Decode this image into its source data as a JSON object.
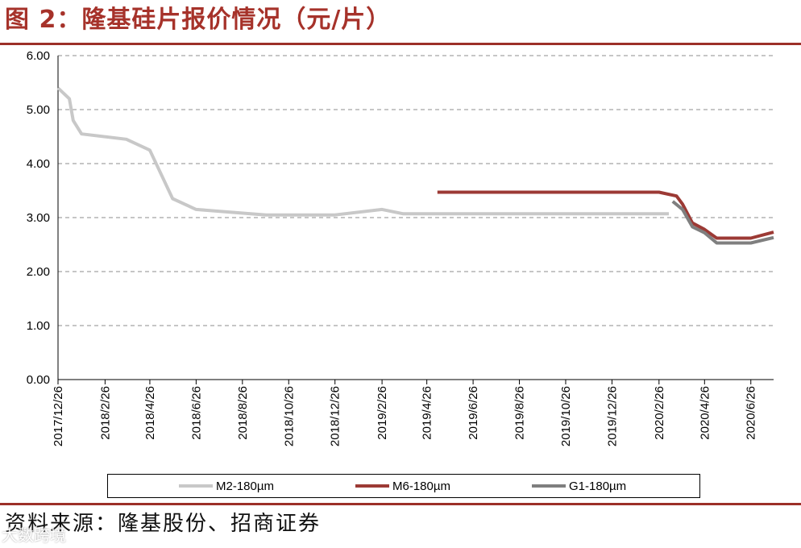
{
  "figure": {
    "title": "图 2：隆基硅片报价情况（元/片）",
    "source": "资料来源：隆基股份、招商证券",
    "watermark": "大数跨境",
    "accent_color": "#9c2f28"
  },
  "chart_data": {
    "type": "line",
    "title": "",
    "xlabel": "",
    "ylabel": "",
    "ylim": [
      0,
      6
    ],
    "yticks": [
      "0.00",
      "1.00",
      "2.00",
      "3.00",
      "4.00",
      "5.00",
      "6.00"
    ],
    "x_range": [
      "2017-12-26",
      "2020-07-26"
    ],
    "xtick_labels": [
      "2017/12/26",
      "2018/2/26",
      "2018/4/26",
      "2018/6/26",
      "2018/8/26",
      "2018/10/26",
      "2018/12/26",
      "2019/2/26",
      "2019/4/26",
      "2019/6/26",
      "2019/8/26",
      "2019/10/26",
      "2019/12/26",
      "2020/2/26",
      "2020/4/26",
      "2020/6/26"
    ],
    "xtick_dates": [
      "2017-12-26",
      "2018-02-26",
      "2018-04-26",
      "2018-06-26",
      "2018-08-26",
      "2018-10-26",
      "2018-12-26",
      "2019-02-26",
      "2019-04-26",
      "2019-06-26",
      "2019-08-26",
      "2019-10-26",
      "2019-12-26",
      "2020-02-26",
      "2020-04-26",
      "2020-06-26"
    ],
    "grid": true,
    "legend_position": "bottom",
    "series": [
      {
        "name": "M2-180µm",
        "color": "#c8c8c8",
        "points": [
          [
            "2017-12-26",
            5.4
          ],
          [
            "2018-01-10",
            5.2
          ],
          [
            "2018-01-15",
            4.8
          ],
          [
            "2018-01-26",
            4.55
          ],
          [
            "2018-03-26",
            4.45
          ],
          [
            "2018-04-26",
            4.25
          ],
          [
            "2018-05-26",
            3.35
          ],
          [
            "2018-06-26",
            3.15
          ],
          [
            "2018-09-26",
            3.05
          ],
          [
            "2018-12-26",
            3.05
          ],
          [
            "2019-02-26",
            3.15
          ],
          [
            "2019-03-26",
            3.07
          ],
          [
            "2020-03-10",
            3.07
          ]
        ]
      },
      {
        "name": "M6-180µm",
        "color": "#9c3a35",
        "points": [
          [
            "2019-05-10",
            3.47
          ],
          [
            "2020-02-26",
            3.47
          ],
          [
            "2020-03-20",
            3.4
          ],
          [
            "2020-03-28",
            3.25
          ],
          [
            "2020-04-10",
            2.9
          ],
          [
            "2020-04-26",
            2.78
          ],
          [
            "2020-05-12",
            2.62
          ],
          [
            "2020-06-26",
            2.62
          ],
          [
            "2020-07-26",
            2.73
          ]
        ]
      },
      {
        "name": "G1-180µm",
        "color": "#7f7f7f",
        "points": [
          [
            "2020-03-15",
            3.3
          ],
          [
            "2020-03-28",
            3.15
          ],
          [
            "2020-04-10",
            2.83
          ],
          [
            "2020-04-26",
            2.72
          ],
          [
            "2020-05-12",
            2.53
          ],
          [
            "2020-06-26",
            2.53
          ],
          [
            "2020-07-26",
            2.63
          ]
        ]
      }
    ]
  }
}
